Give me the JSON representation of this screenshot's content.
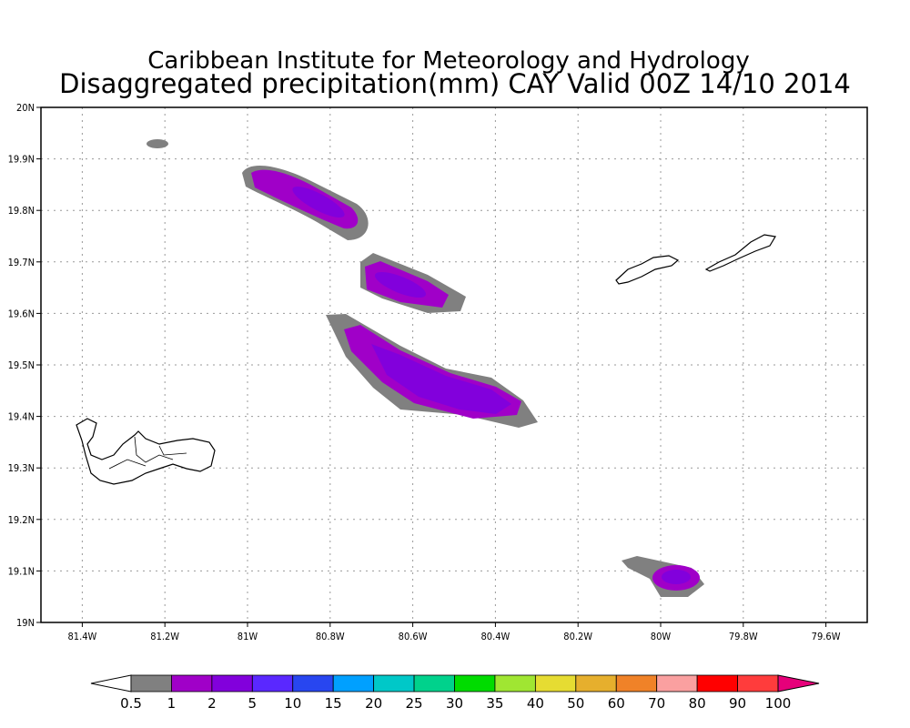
{
  "chart_data": {
    "type": "heatmap",
    "title": "Caribbean Institute for Meteorology and Hydrology",
    "subtitle": "Disaggregated precipitation(mm) CAY Valid 00Z 14/10 2014",
    "xlim": [
      -81.5,
      -79.5
    ],
    "ylim": [
      19.0,
      20.0
    ],
    "grid": true,
    "x_ticks": [
      {
        "value": -81.4,
        "label": "81.4W"
      },
      {
        "value": -81.2,
        "label": "81.2W"
      },
      {
        "value": -81.0,
        "label": "81W"
      },
      {
        "value": -80.8,
        "label": "80.8W"
      },
      {
        "value": -80.6,
        "label": "80.6W"
      },
      {
        "value": -80.4,
        "label": "80.4W"
      },
      {
        "value": -80.2,
        "label": "80.2W"
      },
      {
        "value": -80.0,
        "label": "80W"
      },
      {
        "value": -79.8,
        "label": "79.8W"
      },
      {
        "value": -79.6,
        "label": "79.6W"
      }
    ],
    "y_ticks": [
      {
        "value": 19.0,
        "label": "19N"
      },
      {
        "value": 19.1,
        "label": "19.1N"
      },
      {
        "value": 19.2,
        "label": "19.2N"
      },
      {
        "value": 19.3,
        "label": "19.3N"
      },
      {
        "value": 19.4,
        "label": "19.4N"
      },
      {
        "value": 19.5,
        "label": "19.5N"
      },
      {
        "value": 19.6,
        "label": "19.6N"
      },
      {
        "value": 19.7,
        "label": "19.7N"
      },
      {
        "value": 19.8,
        "label": "19.8N"
      },
      {
        "value": 19.9,
        "label": "19.9N"
      },
      {
        "value": 20.0,
        "label": "20N"
      }
    ],
    "colorbar": {
      "levels": [
        "0.5",
        "1",
        "2",
        "5",
        "10",
        "15",
        "20",
        "25",
        "30",
        "35",
        "40",
        "50",
        "60",
        "70",
        "80",
        "90",
        "100"
      ],
      "colors": [
        "#ffffff",
        "#808080",
        "#a000c8",
        "#8200dc",
        "#5a28ff",
        "#2846f0",
        "#00a0ff",
        "#00c8c8",
        "#00d28c",
        "#00dc00",
        "#a0e632",
        "#e6dc32",
        "#e6af2d",
        "#f08228",
        "#faa0a0",
        "#ff0000",
        "#ff3c3c",
        "#e6007a"
      ]
    },
    "regions": [
      {
        "name": "rain band NW",
        "max_range_mm": "2-5"
      },
      {
        "name": "rain band central",
        "max_range_mm": "2-5"
      },
      {
        "name": "rain band main",
        "max_range_mm": "2-5"
      },
      {
        "name": "rain cell SE",
        "max_range_mm": "2-5"
      }
    ]
  }
}
